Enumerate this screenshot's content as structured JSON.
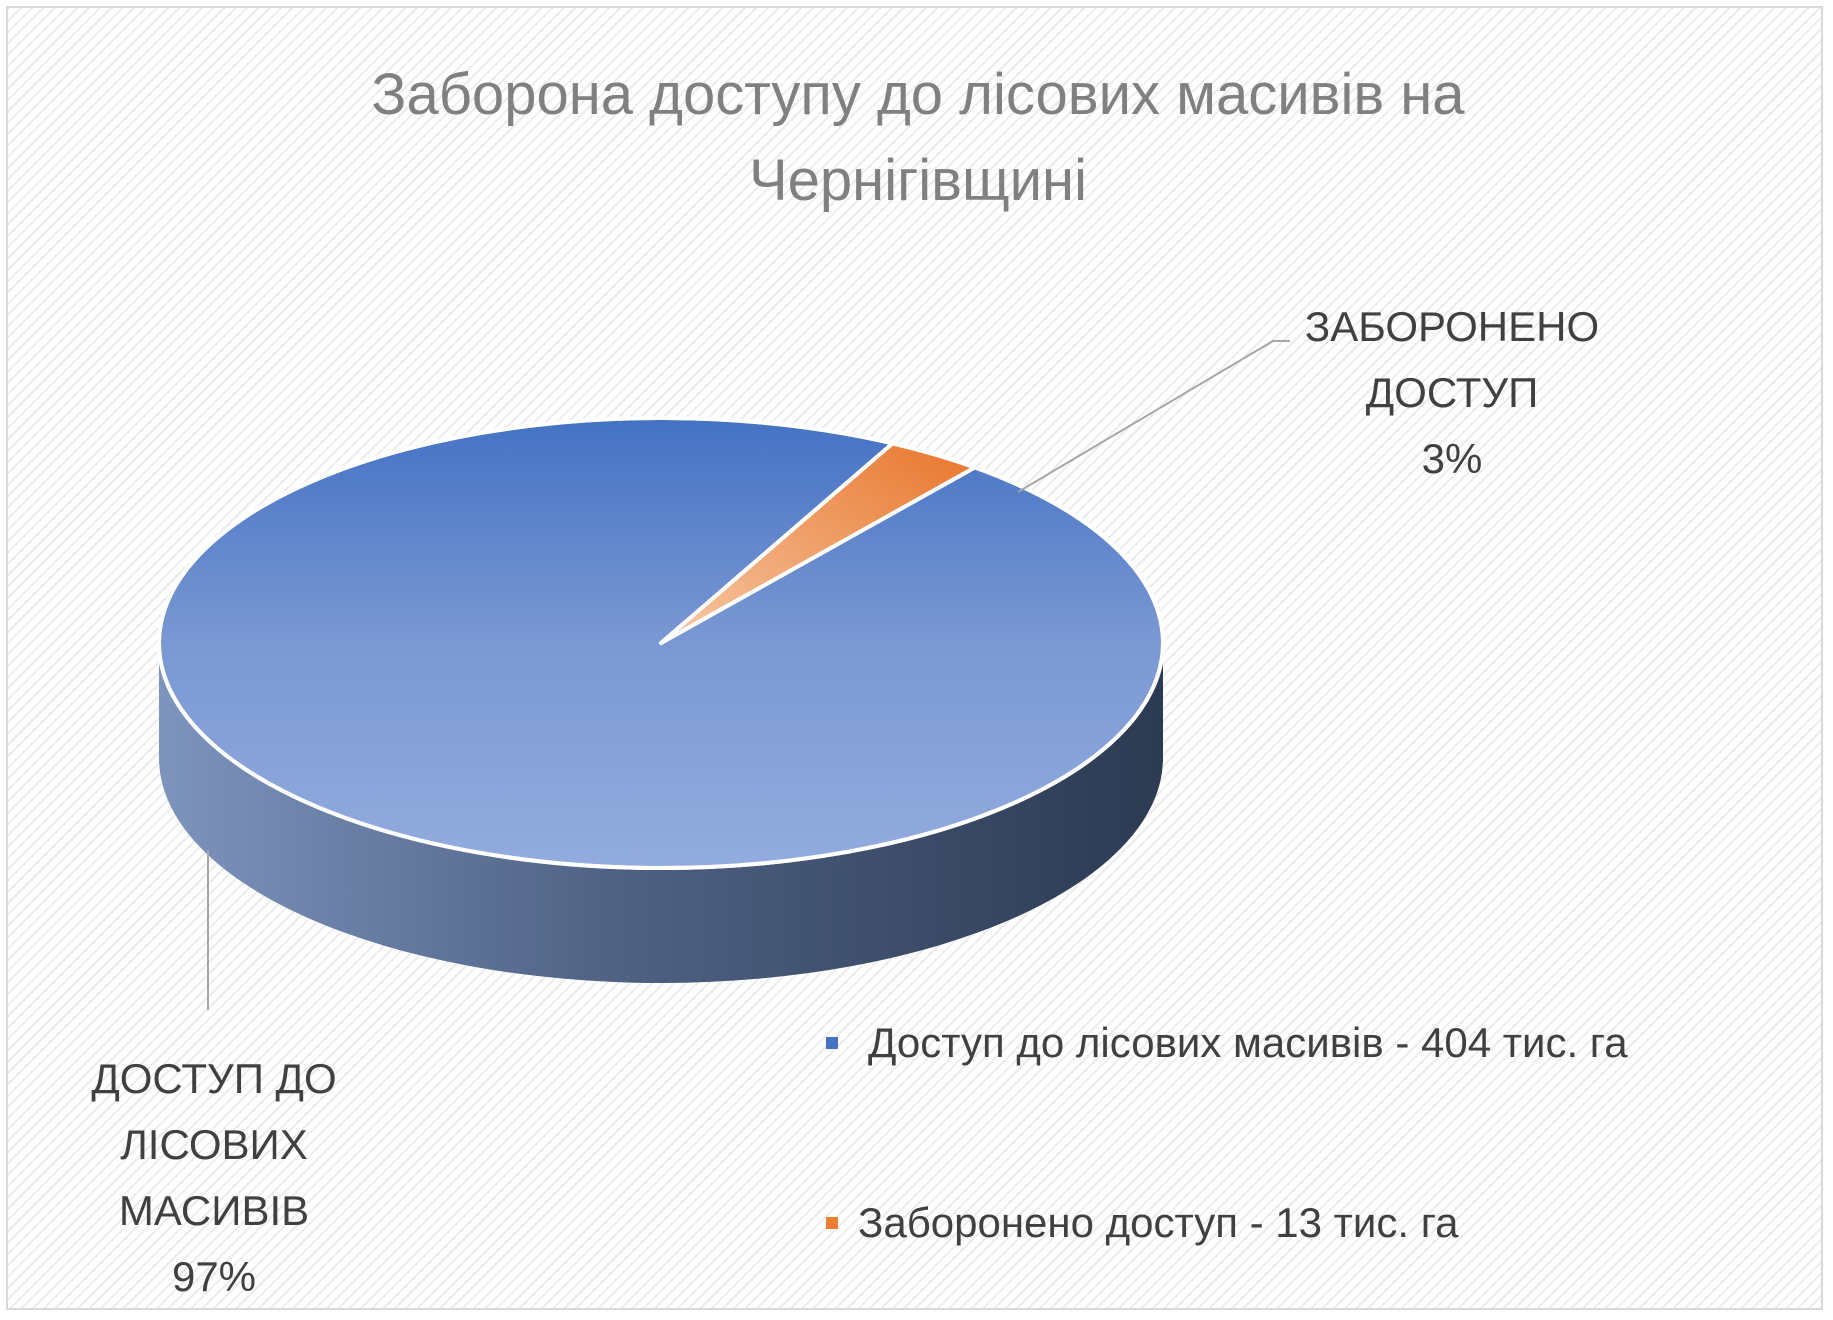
{
  "chart_data": {
    "type": "pie",
    "title_lines": [
      "Заборона доступу до лісових масивів на",
      "Чернігівщині"
    ],
    "slices": [
      {
        "name": "Доступ до лісових масивів - 404 тис. га",
        "value": 404,
        "percent": 97,
        "label_lines": [
          "ДОСТУП ДО",
          "ЛІСОВИХ",
          "МАСИВІВ",
          "97%"
        ],
        "color": "#4472C4"
      },
      {
        "name": "Заборонено доступ - 13 тис. га",
        "value": 13,
        "percent": 3,
        "label_lines": [
          "ЗАБОРОНЕНО",
          "ДОСТУП",
          "3%"
        ],
        "color": "#ED7D31"
      }
    ],
    "legend_position": "bottom-right",
    "style": "3d"
  }
}
